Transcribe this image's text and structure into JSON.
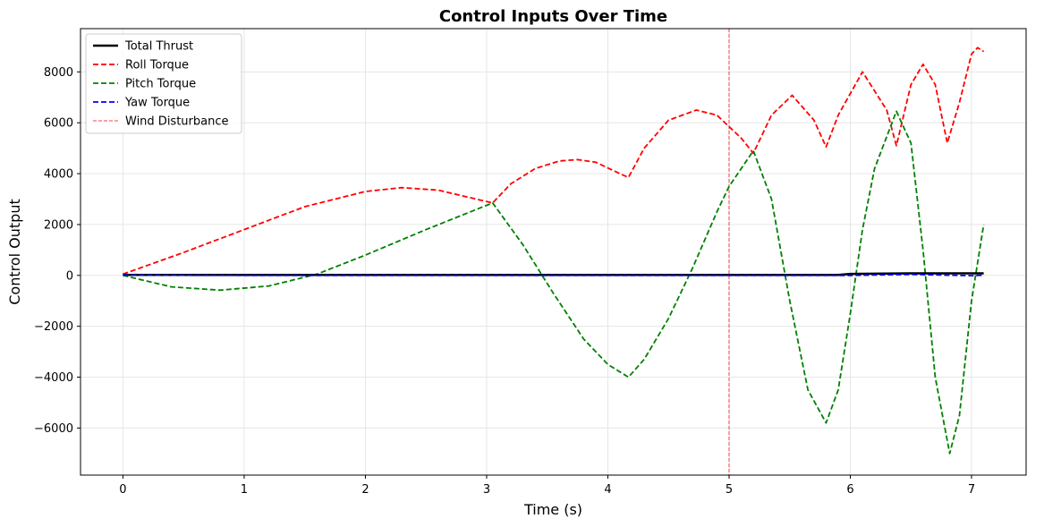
{
  "chart_data": {
    "type": "line",
    "title": "Control Inputs Over Time",
    "xlabel": "Time (s)",
    "ylabel": "Control Output",
    "xlim": [
      -0.35,
      7.45
    ],
    "ylim": [
      -7850,
      9700
    ],
    "xticks": [
      0,
      1,
      2,
      3,
      4,
      5,
      6,
      7
    ],
    "xtick_labels": [
      "0",
      "1",
      "2",
      "3",
      "4",
      "5",
      "6",
      "7"
    ],
    "yticks": [
      -6000,
      -4000,
      -2000,
      0,
      2000,
      4000,
      6000,
      8000
    ],
    "ytick_labels": [
      "−6000",
      "−4000",
      "−2000",
      "0",
      "2000",
      "4000",
      "6000",
      "8000"
    ],
    "grid": true,
    "legend_position": "top-left",
    "vline": {
      "x": 5.0,
      "label": "Wind Disturbance",
      "color": "#ff0000"
    },
    "series": [
      {
        "name": "Total Thrust",
        "color": "#000000",
        "style": "solid",
        "x": [
          0,
          1,
          2,
          3,
          4,
          5,
          5.9,
          6.0,
          6.5,
          7.0,
          7.1
        ],
        "values": [
          20,
          20,
          20,
          20,
          20,
          20,
          20,
          60,
          80,
          80,
          80
        ]
      },
      {
        "name": "Roll Torque",
        "color": "#ff0000",
        "style": "dashed",
        "x": [
          0,
          0.5,
          1.0,
          1.5,
          2.0,
          2.3,
          2.6,
          3.0,
          3.05,
          3.2,
          3.4,
          3.6,
          3.75,
          3.9,
          4.1,
          4.17,
          4.3,
          4.5,
          4.73,
          4.9,
          5.1,
          5.2,
          5.35,
          5.52,
          5.7,
          5.8,
          5.9,
          6.1,
          6.3,
          6.38,
          6.5,
          6.6,
          6.7,
          6.8,
          6.9,
          7.0,
          7.05,
          7.1
        ],
        "values": [
          50,
          900,
          1800,
          2700,
          3300,
          3450,
          3350,
          2900,
          2850,
          3600,
          4200,
          4500,
          4550,
          4450,
          4000,
          3850,
          5000,
          6100,
          6500,
          6300,
          5400,
          4800,
          6300,
          7080,
          6100,
          5050,
          6300,
          8000,
          6500,
          5100,
          7500,
          8300,
          7500,
          5200,
          6800,
          8700,
          8950,
          8800
        ]
      },
      {
        "name": "Pitch Torque",
        "color": "#008000",
        "style": "dashed",
        "x": [
          0,
          0.4,
          0.8,
          1.2,
          1.6,
          2.0,
          2.5,
          3.05,
          3.3,
          3.55,
          3.8,
          4.0,
          4.17,
          4.3,
          4.5,
          4.7,
          4.9,
          5.0,
          5.2,
          5.35,
          5.5,
          5.65,
          5.8,
          5.9,
          6.0,
          6.1,
          6.2,
          6.38,
          6.5,
          6.6,
          6.7,
          6.82,
          6.9,
          7.0,
          7.05,
          7.1
        ],
        "values": [
          0,
          -450,
          -580,
          -420,
          50,
          800,
          1800,
          2850,
          1200,
          -700,
          -2500,
          -3500,
          -4000,
          -3300,
          -1700,
          300,
          2500,
          3500,
          4900,
          3000,
          -1000,
          -4500,
          -5800,
          -4500,
          -1500,
          1800,
          4200,
          6450,
          5200,
          1000,
          -4000,
          -7000,
          -5500,
          -1000,
          500,
          2000
        ]
      },
      {
        "name": "Yaw Torque",
        "color": "#0000ff",
        "style": "dashed",
        "x": [
          0,
          1,
          2,
          3,
          4,
          5,
          6,
          6.5,
          7.0,
          7.1
        ],
        "values": [
          10,
          0,
          0,
          0,
          0,
          0,
          0,
          40,
          -10,
          10
        ]
      }
    ]
  }
}
